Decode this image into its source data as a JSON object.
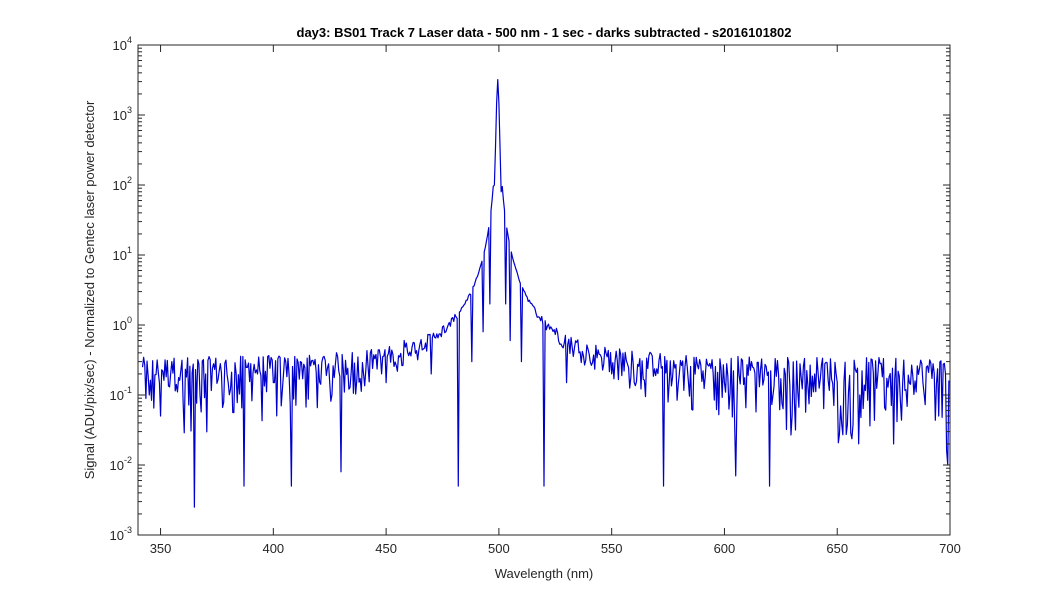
{
  "chart_data": {
    "type": "line",
    "title": "day3: BS01  Track 7 Laser data - 500 nm - 1 sec - darks subtracted - s2016101802",
    "xlabel": "Wavelength (nm)",
    "ylabel": "Signal (ADU/pix/sec) - Normalized to Gentec laser power detector",
    "xlim": [
      340,
      700
    ],
    "ylim_log10": [
      -3,
      4
    ],
    "yscale": "log",
    "xticks": [
      350,
      400,
      450,
      500,
      550,
      600,
      650,
      700
    ],
    "xtick_labels": [
      "350",
      "400",
      "450",
      "500",
      "550",
      "600",
      "650",
      "700"
    ],
    "ytick_exponents": [
      -3,
      -2,
      -1,
      0,
      1,
      2,
      3,
      4
    ],
    "ytick_base": "10",
    "ytick_labels": [
      "-3",
      "-2",
      "-1",
      "0",
      "1",
      "2",
      "3",
      "4"
    ],
    "grid": false,
    "color": "#0000cd",
    "series": [
      {
        "peak": {
          "x": 499.5,
          "y": 3200
        },
        "noise_floor": {
          "typical": 0.15,
          "min_observed": 0.0025
        },
        "sample_points": [
          [
            342,
            0.25
          ],
          [
            345,
            0.1
          ],
          [
            350,
            0.05
          ],
          [
            355,
            0.3
          ],
          [
            360,
            0.08
          ],
          [
            365,
            0.0025
          ],
          [
            370,
            0.2
          ],
          [
            380,
            0.15
          ],
          [
            387,
            0.005
          ],
          [
            390,
            0.28
          ],
          [
            400,
            0.15
          ],
          [
            408,
            0.005
          ],
          [
            412,
            0.3
          ],
          [
            425,
            0.15
          ],
          [
            430,
            0.008
          ],
          [
            440,
            0.2
          ],
          [
            450,
            0.15
          ],
          [
            458,
            0.6
          ],
          [
            470,
            0.2
          ],
          [
            482,
            0.005
          ],
          [
            488,
            0.3
          ],
          [
            493,
            0.8
          ],
          [
            496,
            2.0
          ],
          [
            498,
            100
          ],
          [
            499,
            1500
          ],
          [
            499.5,
            3200
          ],
          [
            500,
            1500
          ],
          [
            501,
            80
          ],
          [
            503,
            2.0
          ],
          [
            505,
            0.6
          ],
          [
            510,
            0.3
          ],
          [
            520,
            0.005
          ],
          [
            530,
            0.15
          ],
          [
            550,
            0.2
          ],
          [
            560,
            0.15
          ],
          [
            573,
            0.005
          ],
          [
            580,
            0.2
          ],
          [
            600,
            0.15
          ],
          [
            605,
            0.007
          ],
          [
            620,
            0.005
          ],
          [
            640,
            0.2
          ],
          [
            660,
            0.1
          ],
          [
            675,
            0.02
          ],
          [
            688,
            0.15
          ],
          [
            695,
            0.05
          ],
          [
            698,
            0.2
          ],
          [
            699,
            0.01
          ]
        ]
      }
    ]
  }
}
